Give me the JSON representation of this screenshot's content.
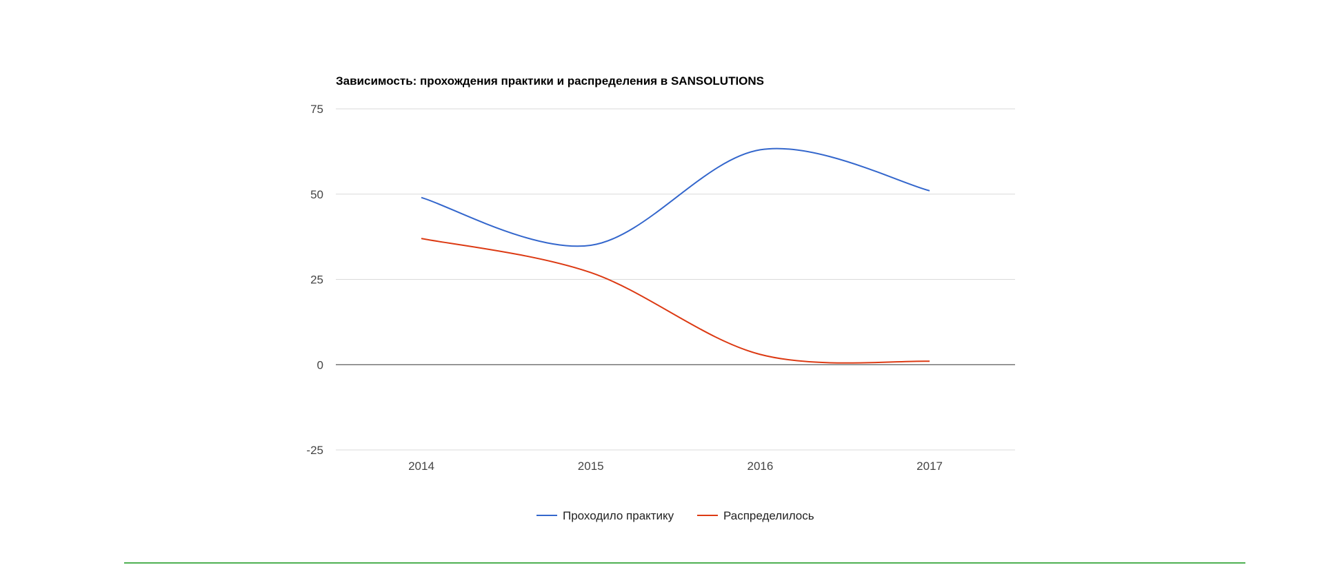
{
  "colors": {
    "series_1": "#3366cc",
    "series_2": "#dc3912",
    "footer_rule": "#4caf50"
  },
  "chart_data": {
    "type": "line",
    "title": "Зависимость: прохождения практики и распределения в SANSOLUTIONS",
    "xlabel": "",
    "ylabel": "",
    "categories": [
      "2014",
      "2015",
      "2016",
      "2017"
    ],
    "ylim": [
      -25,
      75
    ],
    "yticks": [
      "75",
      "50",
      "25",
      "0",
      "-25"
    ],
    "grid": true,
    "legend": "bottom",
    "series": [
      {
        "name": "Проходило практику",
        "values": [
          49,
          35,
          63,
          51
        ]
      },
      {
        "name": "Распределилось",
        "values": [
          37,
          27,
          3,
          1
        ]
      }
    ]
  }
}
